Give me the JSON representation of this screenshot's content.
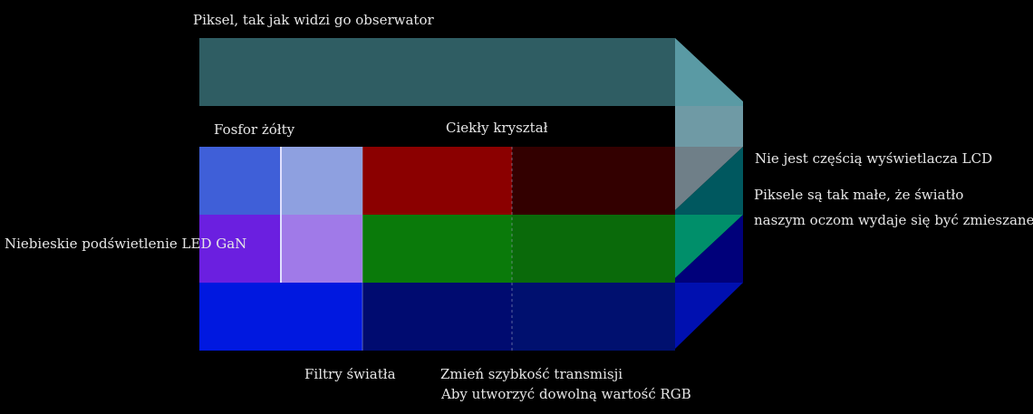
{
  "labels": {
    "observer_pixel": "Piksel, tak jak widzi go obserwator",
    "yellow_phosphor": "Fosfor żółty",
    "liquid_crystal": "Ciekły kryształ",
    "not_part_of_lcd": "Nie jest częścią wyświetlacza LCD",
    "pixels_small_line1": "Piksele są tak małe, że światło",
    "pixels_small_line2": "naszym oczom wydaje się być zmieszane",
    "blue_led_backlight": "Niebieskie podświetlenie LED GaN",
    "light_filters": "Filtry światła",
    "change_transmission": "Zmień szybkość transmisji",
    "create_rgb": "Aby utworzyć dowolną wartość RGB"
  },
  "colors": {
    "background": "#000000",
    "label_text": "#e6e6e6",
    "observer_bar": "#2f5d63",
    "observer_bar_side": "#5a9aa4",
    "mixed_cube_top": "#6f7f88",
    "mixed_cube_mid": "#00585f",
    "mixed_cube_low": "#008f6a",
    "mixed_cube_bottom": "#00007a",
    "row_top_led": "#3f5fd8",
    "row_top_phosphor": "#8ea0e0",
    "row_top_filter": "#8b0000",
    "row_top_lc": "#330000",
    "row_mid_led": "#6b1fe0",
    "row_mid_phosphor": "#a07ae8",
    "row_mid_filter": "#0a7a0a",
    "row_mid_lc": "#0a6a0a",
    "row_bot_led": "#0018e0",
    "row_bot_filter": "#000b70",
    "row_bot_lc": "#00106f"
  }
}
